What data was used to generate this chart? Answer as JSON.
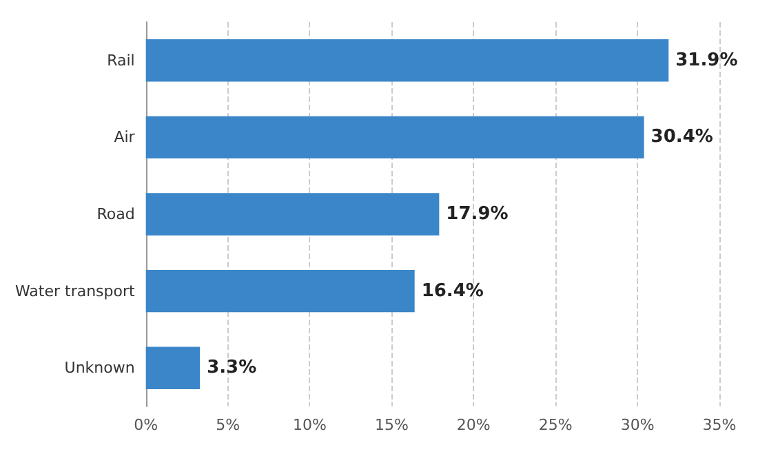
{
  "chart_data": {
    "type": "bar",
    "orientation": "horizontal",
    "categories": [
      "Rail",
      "Air",
      "Road",
      "Water transport",
      "Unknown"
    ],
    "values": [
      31.9,
      30.4,
      17.9,
      16.4,
      3.3
    ],
    "value_labels": [
      "31.9%",
      "30.4%",
      "17.9%",
      "16.4%",
      "3.3%"
    ],
    "color": "#3a86c8",
    "xlim": [
      0,
      35
    ],
    "xticks": [
      {
        "value": 0,
        "label": "0%"
      },
      {
        "value": 5,
        "label": "5%"
      },
      {
        "value": 10,
        "label": "10%"
      },
      {
        "value": 15,
        "label": "15%"
      },
      {
        "value": 20,
        "label": "20%"
      },
      {
        "value": 25,
        "label": "25%"
      },
      {
        "value": 30,
        "label": "30%"
      },
      {
        "value": 35,
        "label": "35%"
      }
    ],
    "grid": "x"
  }
}
